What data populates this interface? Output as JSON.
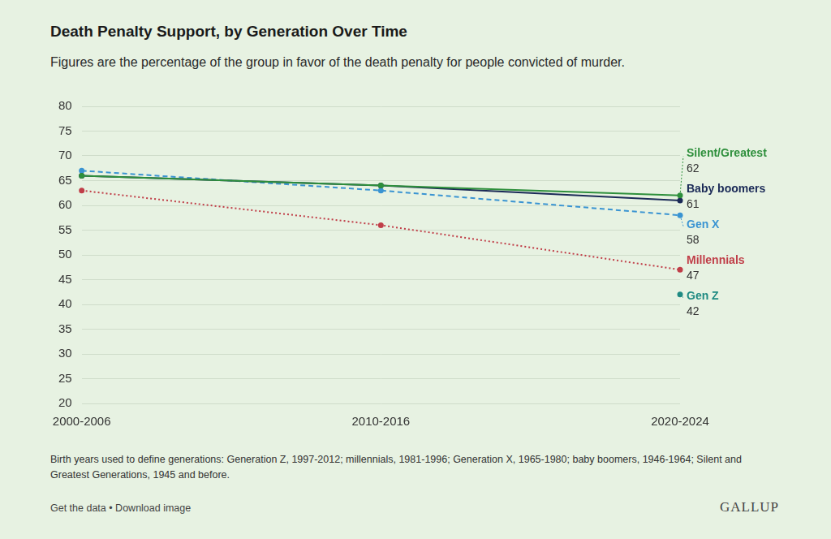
{
  "chart_data": {
    "type": "line",
    "title": "Death Penalty Support, by Generation Over Time",
    "subtitle": "Figures are the percentage of the group in favor of the death penalty for people convicted of murder.",
    "categories": [
      "2000-2006",
      "2010-2016",
      "2020-2024"
    ],
    "series": [
      {
        "name": "Silent/Greatest",
        "color": "#2e8f3c",
        "line_style": "solid",
        "marker": "circle",
        "values": [
          66,
          64,
          62
        ]
      },
      {
        "name": "Baby boomers",
        "color": "#1b2a57",
        "line_style": "solid",
        "marker": "circle",
        "values": [
          66,
          64,
          61
        ]
      },
      {
        "name": "Gen X",
        "color": "#3a94d2",
        "line_style": "dashed",
        "marker": "circle",
        "values": [
          67,
          63,
          58
        ]
      },
      {
        "name": "Millennials",
        "color": "#c03e48",
        "line_style": "dotted",
        "marker": "circle",
        "values": [
          63,
          56,
          47
        ]
      },
      {
        "name": "Gen Z",
        "color": "#1f8a82",
        "line_style": "dotted",
        "marker": "circle",
        "values": [
          null,
          null,
          42
        ]
      }
    ],
    "ylim": [
      20,
      80
    ],
    "yticks": [
      20,
      25,
      30,
      35,
      40,
      45,
      50,
      55,
      60,
      65,
      70,
      75,
      80
    ],
    "grid": true,
    "data_labels": true,
    "footnote": "Birth years used to define generations: Generation Z, 1997-2012; millennials, 1981-1996; Generation X, 1965-1980; baby boomers, 1946-1964; Silent and Greatest Generations, 1945 and before.",
    "links": "Get the data • Download image",
    "source": "GALLUP"
  }
}
